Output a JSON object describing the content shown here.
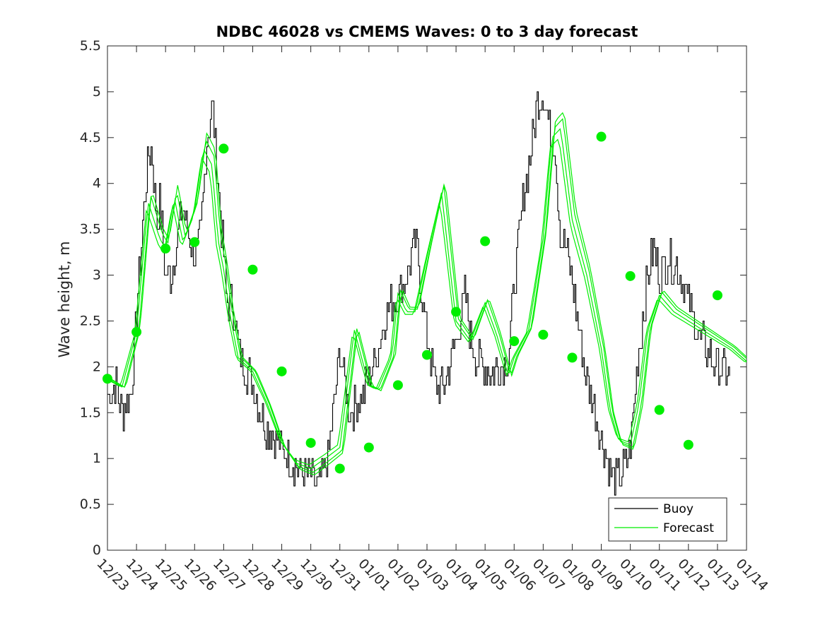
{
  "chart_data": {
    "type": "line",
    "title": "NDBC 46028 vs CMEMS Waves: 0 to 3 day forecast",
    "xlabel": "",
    "ylabel": "Wave height, m",
    "x_tick_labels": [
      "12/23",
      "12/24",
      "12/25",
      "12/26",
      "12/27",
      "12/28",
      "12/29",
      "12/30",
      "12/31",
      "01/01",
      "01/02",
      "01/03",
      "01/04",
      "01/05",
      "01/06",
      "01/07",
      "01/08",
      "01/09",
      "01/10",
      "01/11",
      "01/12",
      "01/13",
      "01/14"
    ],
    "y_ticks": [
      0,
      0.5,
      1,
      1.5,
      2,
      2.5,
      3,
      3.5,
      4,
      4.5,
      5,
      5.5
    ],
    "y_tick_labels": [
      "0",
      "0.5",
      "1",
      "1.5",
      "2",
      "2.5",
      "3",
      "3.5",
      "4",
      "4.5",
      "5",
      "5.5"
    ],
    "xlim": [
      0,
      22
    ],
    "ylim": [
      0,
      5.5
    ],
    "legend": {
      "location": "bottom-right",
      "entries": [
        "Buoy",
        "Forecast"
      ]
    },
    "colors": {
      "buoy": "#000000",
      "forecast": "#00ee00",
      "markers": "#00ee00"
    },
    "series": [
      {
        "name": "Buoy",
        "x": [
          0,
          0.3,
          0.5,
          0.8,
          1.0,
          1.2,
          1.4,
          1.5,
          1.7,
          1.8,
          2.0,
          2.2,
          2.4,
          2.6,
          2.8,
          3.0,
          3.2,
          3.4,
          3.6,
          3.8,
          4.0,
          4.1,
          4.3,
          4.5,
          4.7,
          4.9,
          5.0,
          5.2,
          5.4,
          5.6,
          6.0,
          6.3,
          6.6,
          7.0,
          7.3,
          7.6,
          8.0,
          8.3,
          8.6,
          8.8,
          9.0,
          9.2,
          9.4,
          9.6,
          9.8,
          10.0,
          10.3,
          10.6,
          11.0,
          11.3,
          11.6,
          12.0,
          12.3,
          12.5,
          12.7,
          12.9,
          13.0,
          13.2,
          13.4,
          13.6,
          13.8,
          14.0,
          14.3,
          14.6,
          14.8,
          15.0,
          15.2,
          15.4,
          15.6,
          15.8,
          16.0,
          16.2,
          16.4,
          16.6,
          16.8,
          17.0,
          17.2,
          17.4,
          17.6,
          17.8,
          18.0,
          18.2,
          18.4,
          18.6,
          18.8,
          19.0,
          19.3,
          19.6,
          19.8,
          20.0,
          20.2,
          20.4,
          20.6,
          20.8,
          21.0,
          21.2,
          21.4
        ],
        "values": [
          1.7,
          1.8,
          1.5,
          1.7,
          2.6,
          3.5,
          4.3,
          4.4,
          3.6,
          3.8,
          3.0,
          3.0,
          3.4,
          3.8,
          3.4,
          3.2,
          3.4,
          4.4,
          4.9,
          4.0,
          3.2,
          2.7,
          2.7,
          2.2,
          2.0,
          1.9,
          1.8,
          1.6,
          1.4,
          1.3,
          1.1,
          1.0,
          0.85,
          0.8,
          0.7,
          1.0,
          2.2,
          1.5,
          1.6,
          1.7,
          1.9,
          2.1,
          2.3,
          2.6,
          2.7,
          2.8,
          3.0,
          3.4,
          2.3,
          1.8,
          1.8,
          2.3,
          2.8,
          2.3,
          2.1,
          2.0,
          2.0,
          1.9,
          2.0,
          2.0,
          2.1,
          2.9,
          3.8,
          4.4,
          4.9,
          5.0,
          4.6,
          4.4,
          3.4,
          3.3,
          2.9,
          2.5,
          2.0,
          1.7,
          1.5,
          1.2,
          1.0,
          0.8,
          0.8,
          0.9,
          1.1,
          1.9,
          2.5,
          3.0,
          3.3,
          3.0,
          3.2,
          3.1,
          2.9,
          2.7,
          2.5,
          2.3,
          2.2,
          2.1,
          2.0,
          2.0,
          1.9
        ]
      },
      {
        "name": "Forecast",
        "x": [
          0,
          0.5,
          1.0,
          1.4,
          1.8,
          2.0,
          2.3,
          2.6,
          3.0,
          3.3,
          3.6,
          3.8,
          4.0,
          4.2,
          4.5,
          5.0,
          5.5,
          6.0,
          6.5,
          7.0,
          7.5,
          8.0,
          8.5,
          9.0,
          9.3,
          9.5,
          9.8,
          10.0,
          10.3,
          10.6,
          11.0,
          11.5,
          12.0,
          12.5,
          13.0,
          13.4,
          13.8,
          14.0,
          14.5,
          15.0,
          15.3,
          15.6,
          16.0,
          16.5,
          17.0,
          17.3,
          17.6,
          18.0,
          18.3,
          18.6,
          19.0,
          19.5,
          20.0,
          20.5,
          21.0,
          21.5,
          22.0
        ],
        "values": [
          1.87,
          1.78,
          2.38,
          3.8,
          3.4,
          3.29,
          3.85,
          3.36,
          3.7,
          4.38,
          4.2,
          3.4,
          3.06,
          2.6,
          2.1,
          1.95,
          1.6,
          1.17,
          0.95,
          0.89,
          1.0,
          1.12,
          2.4,
          1.8,
          1.75,
          1.9,
          2.13,
          2.8,
          2.6,
          2.6,
          3.2,
          3.9,
          2.5,
          2.28,
          2.7,
          2.35,
          1.9,
          2.1,
          2.4,
          3.4,
          4.5,
          4.6,
          3.6,
          3.0,
          2.2,
          1.53,
          1.2,
          1.15,
          1.6,
          2.4,
          2.78,
          2.6,
          2.5,
          2.4,
          2.3,
          2.2,
          2.06
        ]
      }
    ],
    "analysis_markers": {
      "name": "Forecast",
      "x": [
        0,
        1,
        2,
        3,
        4,
        5,
        6,
        7,
        8,
        9,
        10,
        11,
        12,
        13,
        14,
        15,
        16,
        17,
        18,
        19,
        20,
        21
      ],
      "values": [
        1.87,
        2.38,
        3.29,
        3.36,
        4.38,
        3.06,
        1.95,
        1.17,
        0.89,
        1.12,
        1.8,
        2.13,
        2.6,
        3.37,
        2.28,
        2.35,
        2.1,
        4.51,
        2.99,
        1.53,
        1.15,
        2.78
      ]
    }
  }
}
